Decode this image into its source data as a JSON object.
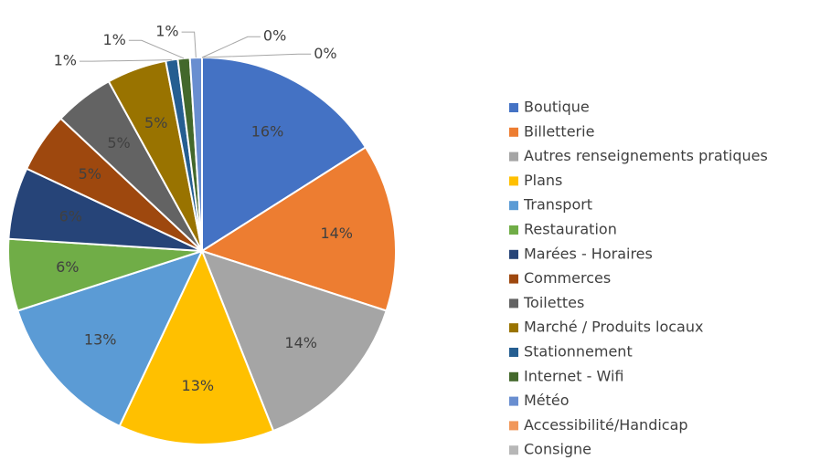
{
  "chart_data": {
    "type": "pie",
    "categories": [
      "Boutique",
      "Billetterie",
      "Autres renseignements pratiques",
      "Plans",
      "Transport",
      "Restauration",
      "Marées - Horaires",
      "Commerces",
      "Toilettes",
      "Marché / Produits locaux",
      "Stationnement",
      "Internet - Wifi",
      "Météo",
      "Accessibilité/Handicap",
      "Consigne"
    ],
    "values": [
      16,
      14,
      14,
      13,
      13,
      6,
      6,
      5,
      5,
      5,
      1,
      1,
      1,
      0,
      0
    ],
    "value_labels": [
      "16%",
      "14%",
      "14%",
      "13%",
      "13%",
      "6%",
      "6%",
      "5%",
      "5%",
      "5%",
      "1%",
      "1%",
      "1%",
      "0%",
      "0%"
    ],
    "colors": [
      "#4472c4",
      "#ed7d31",
      "#a5a5a5",
      "#ffc000",
      "#5b9bd5",
      "#70ad47",
      "#264478",
      "#9e480e",
      "#636363",
      "#997300",
      "#255e91",
      "#43682b",
      "#698ed0",
      "#f1975a",
      "#b7b7b7"
    ],
    "legend": "right"
  }
}
